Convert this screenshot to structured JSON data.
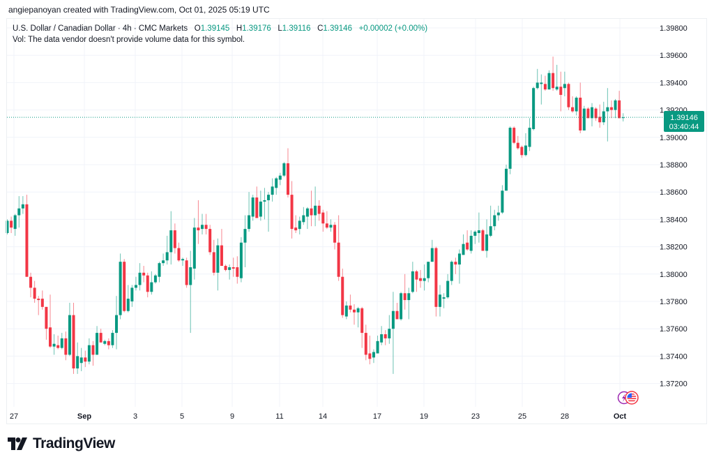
{
  "credit": "angiepanoyan created with TradingView.com, Oct 01, 2025 05:19 UTC",
  "legend": {
    "symbol": "U.S. Dollar / Canadian Dollar · 4h · CMC Markets",
    "o_label": "O",
    "o_value": "1.39145",
    "h_label": "H",
    "h_value": "1.39176",
    "l_label": "L",
    "l_value": "1.39116",
    "c_label": "C",
    "c_value": "1.39146",
    "change": "+0.00002 (+0.00%)",
    "vol_note": "Vol: The data vendor doesn't provide volume data for this symbol."
  },
  "price_badge": {
    "price": "1.39146",
    "countdown": "03:40:44",
    "color": "#089981"
  },
  "icons": {
    "events": "lightning-icon",
    "country": "us-flag-icon"
  },
  "logo": {
    "text": "TradingView"
  },
  "colors": {
    "up": "#089981",
    "down": "#F23645",
    "grid": "#f0f3fa"
  },
  "chart_data": {
    "type": "candlestick",
    "title": "U.S. Dollar / Canadian Dollar · 4h · CMC Markets",
    "timeframe": "4h",
    "ylim": [
      1.371,
      1.399
    ],
    "y_ticks": [
      "1.39800",
      "1.39600",
      "1.39400",
      "1.39200",
      "1.39000",
      "1.38800",
      "1.38600",
      "1.38400",
      "1.38200",
      "1.38000",
      "1.37800",
      "1.37600",
      "1.37400",
      "1.37200"
    ],
    "x_ticks": [
      {
        "label": "27",
        "bold": false
      },
      {
        "label": "Sep",
        "bold": true
      },
      {
        "label": "3",
        "bold": false
      },
      {
        "label": "5",
        "bold": false
      },
      {
        "label": "9",
        "bold": false
      },
      {
        "label": "11",
        "bold": false
      },
      {
        "label": "14",
        "bold": false
      },
      {
        "label": "17",
        "bold": false
      },
      {
        "label": "19",
        "bold": false
      },
      {
        "label": "23",
        "bold": false
      },
      {
        "label": "25",
        "bold": false
      },
      {
        "label": "28",
        "bold": false
      },
      {
        "label": "Oct",
        "bold": true
      }
    ],
    "last_price": 1.39146,
    "ohlc": [
      [
        1.383,
        1.384,
        1.3829,
        1.3839
      ],
      [
        1.3839,
        1.3842,
        1.383,
        1.3834
      ],
      [
        1.3833,
        1.3844,
        1.3828,
        1.3843
      ],
      [
        1.3843,
        1.3857,
        1.3834,
        1.3848
      ],
      [
        1.3848,
        1.3857,
        1.3844,
        1.3851
      ],
      [
        1.3851,
        1.3858,
        1.3798,
        1.3798
      ],
      [
        1.3798,
        1.3801,
        1.3783,
        1.379
      ],
      [
        1.379,
        1.3795,
        1.3779,
        1.3782
      ],
      [
        1.3782,
        1.3784,
        1.377,
        1.3781
      ],
      [
        1.3782,
        1.3788,
        1.3774,
        1.3776
      ],
      [
        1.3776,
        1.3776,
        1.3752,
        1.376
      ],
      [
        1.3761,
        1.3785,
        1.3746,
        1.3747
      ],
      [
        1.3747,
        1.3756,
        1.3741,
        1.3749
      ],
      [
        1.3748,
        1.3755,
        1.3745,
        1.3746
      ],
      [
        1.3746,
        1.3757,
        1.3745,
        1.3753
      ],
      [
        1.3753,
        1.3758,
        1.3737,
        1.3741
      ],
      [
        1.3741,
        1.3779,
        1.374,
        1.377
      ],
      [
        1.377,
        1.3779,
        1.3727,
        1.3731
      ],
      [
        1.3731,
        1.375,
        1.3727,
        1.374
      ],
      [
        1.3735,
        1.3746,
        1.3729,
        1.3739
      ],
      [
        1.3739,
        1.3744,
        1.3732,
        1.3736
      ],
      [
        1.3736,
        1.3753,
        1.3734,
        1.3748
      ],
      [
        1.3748,
        1.3751,
        1.3733,
        1.3741
      ],
      [
        1.3741,
        1.3762,
        1.3741,
        1.3757
      ],
      [
        1.3757,
        1.376,
        1.375,
        1.375
      ],
      [
        1.3749,
        1.3752,
        1.3748,
        1.3751
      ],
      [
        1.3751,
        1.3753,
        1.3745,
        1.3748
      ],
      [
        1.3748,
        1.3759,
        1.3746,
        1.3757
      ],
      [
        1.3757,
        1.3784,
        1.3745,
        1.377
      ],
      [
        1.377,
        1.3815,
        1.3767,
        1.3809
      ],
      [
        1.3809,
        1.3811,
        1.3772,
        1.3773
      ],
      [
        1.3773,
        1.3792,
        1.3772,
        1.3782
      ],
      [
        1.378,
        1.3792,
        1.3776,
        1.379
      ],
      [
        1.379,
        1.3798,
        1.3788,
        1.3792
      ],
      [
        1.3792,
        1.3808,
        1.3788,
        1.3801
      ],
      [
        1.3801,
        1.3806,
        1.3794,
        1.3799
      ],
      [
        1.3799,
        1.3801,
        1.3783,
        1.3787
      ],
      [
        1.3787,
        1.3802,
        1.3785,
        1.3794
      ],
      [
        1.3794,
        1.38,
        1.3793,
        1.3799
      ],
      [
        1.3798,
        1.3809,
        1.3794,
        1.3808
      ],
      [
        1.3808,
        1.3815,
        1.3806,
        1.381
      ],
      [
        1.381,
        1.3828,
        1.3807,
        1.3816
      ],
      [
        1.3816,
        1.3846,
        1.3807,
        1.3832
      ],
      [
        1.3832,
        1.3837,
        1.3815,
        1.3819
      ],
      [
        1.3819,
        1.3823,
        1.3809,
        1.381
      ],
      [
        1.381,
        1.3812,
        1.3806,
        1.3811
      ],
      [
        1.381,
        1.3812,
        1.379,
        1.3792
      ],
      [
        1.3792,
        1.3817,
        1.3757,
        1.3805
      ],
      [
        1.3804,
        1.3841,
        1.3796,
        1.3834
      ],
      [
        1.3834,
        1.3854,
        1.3822,
        1.3832
      ],
      [
        1.3833,
        1.3844,
        1.3829,
        1.3836
      ],
      [
        1.3836,
        1.3844,
        1.3829,
        1.3833
      ],
      [
        1.3833,
        1.3836,
        1.3814,
        1.3816
      ],
      [
        1.3816,
        1.3825,
        1.3799,
        1.3801
      ],
      [
        1.3801,
        1.3826,
        1.3788,
        1.3821
      ],
      [
        1.3821,
        1.3833,
        1.3806,
        1.3806
      ],
      [
        1.3806,
        1.3807,
        1.3802,
        1.3803
      ],
      [
        1.3803,
        1.3807,
        1.3796,
        1.3805
      ],
      [
        1.3805,
        1.3812,
        1.3798,
        1.3804
      ],
      [
        1.3805,
        1.3813,
        1.3793,
        1.3798
      ],
      [
        1.3797,
        1.3827,
        1.3794,
        1.3823
      ],
      [
        1.3823,
        1.3843,
        1.3805,
        1.3833
      ],
      [
        1.3833,
        1.386,
        1.3831,
        1.3843
      ],
      [
        1.3842,
        1.3858,
        1.3839,
        1.3856
      ],
      [
        1.3856,
        1.3864,
        1.3841,
        1.3841
      ],
      [
        1.3842,
        1.3861,
        1.3839,
        1.3853
      ],
      [
        1.3853,
        1.3863,
        1.384,
        1.3854
      ],
      [
        1.3854,
        1.386,
        1.3831,
        1.3858
      ],
      [
        1.3858,
        1.387,
        1.3853,
        1.3864
      ],
      [
        1.3863,
        1.3871,
        1.3858,
        1.387
      ],
      [
        1.3869,
        1.3874,
        1.3865,
        1.3872
      ],
      [
        1.3872,
        1.3882,
        1.3871,
        1.3881
      ],
      [
        1.3881,
        1.3892,
        1.3856,
        1.3858
      ],
      [
        1.3858,
        1.3868,
        1.3826,
        1.3833
      ],
      [
        1.3834,
        1.3843,
        1.383,
        1.3832
      ],
      [
        1.3833,
        1.3842,
        1.3829,
        1.3839
      ],
      [
        1.3838,
        1.3849,
        1.3836,
        1.3843
      ],
      [
        1.3842,
        1.3849,
        1.3833,
        1.3848
      ],
      [
        1.3848,
        1.3861,
        1.3835,
        1.3843
      ],
      [
        1.3843,
        1.3864,
        1.3835,
        1.385
      ],
      [
        1.385,
        1.3854,
        1.3839,
        1.3844
      ],
      [
        1.3845,
        1.3847,
        1.3831,
        1.3837
      ],
      [
        1.3837,
        1.3846,
        1.3833,
        1.3834
      ],
      [
        1.3834,
        1.384,
        1.3831,
        1.3836
      ],
      [
        1.3836,
        1.3838,
        1.3818,
        1.3823
      ],
      [
        1.3823,
        1.3843,
        1.3795,
        1.3798
      ],
      [
        1.3798,
        1.3804,
        1.3768,
        1.377
      ],
      [
        1.3769,
        1.378,
        1.3767,
        1.3777
      ],
      [
        1.3777,
        1.3785,
        1.3772,
        1.3774
      ],
      [
        1.3774,
        1.3778,
        1.3763,
        1.3772
      ],
      [
        1.3772,
        1.3776,
        1.3761,
        1.3775
      ],
      [
        1.3775,
        1.3776,
        1.3746,
        1.3757
      ],
      [
        1.3757,
        1.3763,
        1.3737,
        1.3741
      ],
      [
        1.3742,
        1.3755,
        1.3734,
        1.3738
      ],
      [
        1.3739,
        1.3745,
        1.3735,
        1.3743
      ],
      [
        1.3742,
        1.3755,
        1.3742,
        1.3751
      ],
      [
        1.375,
        1.3762,
        1.3748,
        1.3756
      ],
      [
        1.3756,
        1.3759,
        1.3748,
        1.3753
      ],
      [
        1.3753,
        1.377,
        1.3749,
        1.376
      ],
      [
        1.376,
        1.3787,
        1.3727,
        1.3773
      ],
      [
        1.3773,
        1.3779,
        1.3767,
        1.3767
      ],
      [
        1.3767,
        1.3787,
        1.3766,
        1.3786
      ],
      [
        1.3786,
        1.38,
        1.3774,
        1.3781
      ],
      [
        1.3781,
        1.379,
        1.3767,
        1.3786
      ],
      [
        1.3787,
        1.3809,
        1.3786,
        1.3802
      ],
      [
        1.3802,
        1.3803,
        1.3787,
        1.3796
      ],
      [
        1.3797,
        1.3803,
        1.379,
        1.3795
      ],
      [
        1.3795,
        1.3807,
        1.3788,
        1.3797
      ],
      [
        1.3797,
        1.3809,
        1.3794,
        1.3809
      ],
      [
        1.3809,
        1.3825,
        1.3809,
        1.3819
      ],
      [
        1.3819,
        1.382,
        1.3769,
        1.3776
      ],
      [
        1.3776,
        1.3792,
        1.3769,
        1.3785
      ],
      [
        1.3782,
        1.3786,
        1.3775,
        1.3783
      ],
      [
        1.3783,
        1.38,
        1.3782,
        1.3795
      ],
      [
        1.3795,
        1.381,
        1.3792,
        1.3809
      ],
      [
        1.3809,
        1.3812,
        1.38,
        1.3807
      ],
      [
        1.3807,
        1.3818,
        1.3793,
        1.3815
      ],
      [
        1.3814,
        1.3829,
        1.3814,
        1.3822
      ],
      [
        1.3823,
        1.3832,
        1.3817,
        1.3818
      ],
      [
        1.3817,
        1.3832,
        1.3815,
        1.3828
      ],
      [
        1.3828,
        1.3832,
        1.3822,
        1.3831
      ],
      [
        1.383,
        1.3845,
        1.3823,
        1.3832
      ],
      [
        1.3832,
        1.3833,
        1.3817,
        1.3817
      ],
      [
        1.3817,
        1.384,
        1.3812,
        1.3829
      ],
      [
        1.3828,
        1.385,
        1.3827,
        1.3835
      ],
      [
        1.3835,
        1.3847,
        1.3832,
        1.3843
      ],
      [
        1.3843,
        1.385,
        1.3839,
        1.3845
      ],
      [
        1.3845,
        1.3865,
        1.3844,
        1.3861
      ],
      [
        1.3861,
        1.388,
        1.3861,
        1.3877
      ],
      [
        1.3877,
        1.3908,
        1.3873,
        1.3907
      ],
      [
        1.3907,
        1.3908,
        1.3895,
        1.3896
      ],
      [
        1.3896,
        1.3901,
        1.3891,
        1.3892
      ],
      [
        1.3893,
        1.3894,
        1.3885,
        1.3887
      ],
      [
        1.3887,
        1.3903,
        1.3886,
        1.3894
      ],
      [
        1.3893,
        1.3914,
        1.389,
        1.3907
      ],
      [
        1.3906,
        1.3937,
        1.3905,
        1.3936
      ],
      [
        1.3936,
        1.395,
        1.3935,
        1.394
      ],
      [
        1.3939,
        1.3946,
        1.3924,
        1.394
      ],
      [
        1.3939,
        1.3945,
        1.3934,
        1.3935
      ],
      [
        1.3935,
        1.3949,
        1.3935,
        1.3947
      ],
      [
        1.3947,
        1.3959,
        1.3934,
        1.3936
      ],
      [
        1.3935,
        1.3953,
        1.3934,
        1.3937
      ],
      [
        1.3937,
        1.3948,
        1.3919,
        1.3931
      ],
      [
        1.3936,
        1.3948,
        1.393,
        1.3939
      ],
      [
        1.3939,
        1.394,
        1.392,
        1.3922
      ],
      [
        1.3922,
        1.393,
        1.3918,
        1.3919
      ],
      [
        1.3919,
        1.393,
        1.3916,
        1.3929
      ],
      [
        1.3929,
        1.394,
        1.3903,
        1.3905
      ],
      [
        1.3905,
        1.3923,
        1.3905,
        1.3921
      ],
      [
        1.3921,
        1.3922,
        1.3914,
        1.3914
      ],
      [
        1.3914,
        1.3925,
        1.3908,
        1.3922
      ],
      [
        1.3921,
        1.3922,
        1.3912,
        1.3914
      ],
      [
        1.3915,
        1.3924,
        1.3907,
        1.3911
      ],
      [
        1.3911,
        1.3926,
        1.3909,
        1.3919
      ],
      [
        1.3919,
        1.3936,
        1.3897,
        1.3922
      ],
      [
        1.3922,
        1.3927,
        1.3914,
        1.392
      ],
      [
        1.392,
        1.3928,
        1.3914,
        1.3927
      ],
      [
        1.3927,
        1.3934,
        1.3914,
        1.3914
      ],
      [
        1.39145,
        1.39176,
        1.39116,
        1.39146
      ]
    ]
  }
}
